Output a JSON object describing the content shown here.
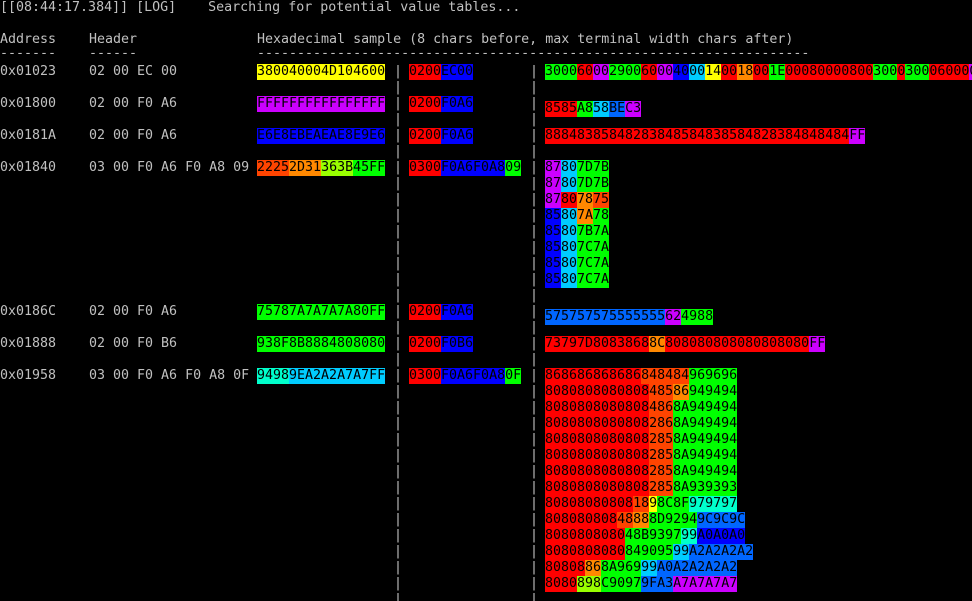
{
  "log_line": "[[08:44:17.384]] [LOG]    Searching for potential value tables...",
  "headers": {
    "address": "Address",
    "header": "Header",
    "sample": "Hexadecimal sample (8 chars before, max terminal width chars after)"
  },
  "underlines": {
    "address": "-------",
    "header": "------",
    "sample": "---------------------------------------------------------------------"
  },
  "separator": "|",
  "colors": {
    "r": "#ff0000",
    "g": "#00ff00",
    "b": "#0000ff",
    "y": "#ffff00",
    "m": "#cc00ff",
    "o": "#ff8800",
    "c": "#00ffcc",
    "t": "#00ccff",
    "l": "#99ff00",
    "x": "#ff4400",
    "s": "#0066ff",
    "p": "#ff00cc"
  },
  "entries": [
    {
      "address": "0x01023",
      "header": "02 00 EC 00",
      "before": [
        [
          "380040004D104600",
          "y"
        ]
      ],
      "mid": [
        [
          "0200",
          "r"
        ],
        [
          "EC00",
          "b"
        ]
      ],
      "after": [
        [
          [
            [
              "3000",
              "g"
            ],
            [
              "60",
              "r"
            ],
            [
              "00",
              "m"
            ],
            [
              "2900",
              "g"
            ],
            [
              "60",
              "r"
            ],
            [
              "00",
              "m"
            ],
            [
              "40",
              "b"
            ],
            [
              "00",
              "t"
            ],
            [
              "14",
              "y"
            ],
            [
              "00",
              "r"
            ],
            [
              "18",
              "o"
            ],
            [
              "00",
              "r"
            ],
            [
              "1E",
              "g"
            ],
            [
              "00080000800",
              "r"
            ],
            [
              "300",
              "g"
            ],
            [
              "0",
              "r"
            ],
            [
              "300",
              "g"
            ],
            [
              "06000",
              "r"
            ],
            [
              "0",
              "m"
            ]
          ]
        ]
      ]
    },
    {
      "address": "0x01800",
      "header": "02 00 F0 A6",
      "before": [
        [
          "FFFFFFFFFFFFFFFF",
          "m"
        ]
      ],
      "mid": [
        [
          "0200",
          "r"
        ],
        [
          "F0A6",
          "b"
        ]
      ],
      "after": [
        [
          [
            [
              "8585",
              "r"
            ],
            [
              "A8",
              "g"
            ],
            [
              "",
              "b"
            ],
            [
              "58",
              "t"
            ],
            [
              "BE",
              "s"
            ],
            [
              "C3",
              "m"
            ]
          ]
        ]
      ]
    },
    {
      "address": "0x0181A",
      "header": "02 00 F0 A6",
      "before": [
        [
          "E6E8EBEAEAE8E9E6",
          "b"
        ]
      ],
      "mid": [
        [
          "0200",
          "r"
        ],
        [
          "F0A6",
          "b"
        ]
      ],
      "after": [
        [
          [
            [
              "88848385848283848584838584828384848484",
              "r"
            ],
            [
              "FF",
              "m"
            ]
          ]
        ]
      ]
    },
    {
      "address": "0x01840",
      "header": "03 00 F0 A6 F0 A8 09",
      "before": [
        [
          "2225",
          "x"
        ],
        [
          "2D31",
          "o"
        ],
        [
          "363B",
          "l"
        ],
        [
          "45FF",
          "g"
        ]
      ],
      "mid": [
        [
          "0300",
          "r"
        ],
        [
          "F0A6F0A8",
          "b"
        ],
        [
          "09",
          "g"
        ]
      ],
      "after": [
        [
          [
            [
              "87",
              "m"
            ],
            [
              "80",
              "t"
            ],
            [
              "7D7B",
              "g"
            ]
          ]
        ],
        [
          [
            [
              "87",
              "m"
            ],
            [
              "80",
              "t"
            ],
            [
              "7D7B",
              "g"
            ]
          ]
        ],
        [
          [
            [
              "87",
              "m"
            ],
            [
              "80",
              "r"
            ],
            [
              "78",
              "o"
            ],
            [
              "75",
              "x"
            ]
          ]
        ],
        [
          [
            [
              "85",
              "b"
            ],
            [
              "80",
              "t"
            ],
            [
              "7A",
              "o"
            ],
            [
              "78",
              "g"
            ]
          ]
        ],
        [
          [
            [
              "85",
              "b"
            ],
            [
              "80",
              "t"
            ],
            [
              "7B7A",
              "g"
            ]
          ]
        ],
        [
          [
            [
              "85",
              "b"
            ],
            [
              "80",
              "t"
            ],
            [
              "7C7A",
              "g"
            ]
          ]
        ],
        [
          [
            [
              "85",
              "b"
            ],
            [
              "80",
              "t"
            ],
            [
              "7C7A",
              "g"
            ]
          ]
        ],
        [
          [
            [
              "85",
              "b"
            ],
            [
              "80",
              "t"
            ],
            [
              "7C7A",
              "g"
            ]
          ]
        ]
      ]
    },
    {
      "address": "0x0186C",
      "header": "02 00 F0 A6",
      "before": [
        [
          "75787A7A7A7A80FF",
          "g"
        ]
      ],
      "mid": [
        [
          "0200",
          "r"
        ],
        [
          "F0A6",
          "b"
        ]
      ],
      "after": [
        [
          [
            [
              "575757575555555",
              "s"
            ],
            [
              "62",
              "m"
            ],
            [
              "",
              "b"
            ],
            [
              "4988",
              "g"
            ],
            [
              "",
              "r"
            ]
          ]
        ]
      ]
    },
    {
      "address": "0x01888",
      "header": "02 00 F0 B6",
      "before": [
        [
          "938F8B8884808080",
          "g"
        ]
      ],
      "mid": [
        [
          "0200",
          "r"
        ],
        [
          "F0B6",
          "b"
        ]
      ],
      "after": [
        [
          [
            [
              "73797D8083868",
              "r"
            ],
            [
              "8C",
              "o"
            ],
            [
              "808080808080808080",
              "r"
            ],
            [
              "FF",
              "m"
            ]
          ]
        ]
      ]
    },
    {
      "address": "0x01958",
      "header": "03 00 F0 A6 F0 A8 0F",
      "before": [
        [
          "9498",
          "c"
        ],
        [
          "9EA2A2A7A7FF",
          "t"
        ]
      ],
      "mid": [
        [
          "0300",
          "r"
        ],
        [
          "F0A6F0A8",
          "b"
        ],
        [
          "0F",
          "g"
        ]
      ],
      "after": [
        [
          [
            [
              "868686868686",
              "r"
            ],
            [
              "848484",
              "x"
            ],
            [
              "969696",
              "g"
            ]
          ]
        ],
        [
          [
            [
              "8080808080808",
              "r"
            ],
            [
              "485",
              "x"
            ],
            [
              "86",
              "o"
            ],
            [
              "949494",
              "g"
            ]
          ]
        ],
        [
          [
            [
              "8080808080808",
              "r"
            ],
            [
              "486",
              "x"
            ],
            [
              "8A949494",
              "g"
            ]
          ]
        ],
        [
          [
            [
              "8080808080808",
              "r"
            ],
            [
              "286",
              "x"
            ],
            [
              "8A949494",
              "g"
            ]
          ]
        ],
        [
          [
            [
              "8080808080808",
              "r"
            ],
            [
              "285",
              "x"
            ],
            [
              "8A949494",
              "g"
            ]
          ]
        ],
        [
          [
            [
              "8080808080808",
              "r"
            ],
            [
              "285",
              "x"
            ],
            [
              "8A949494",
              "g"
            ]
          ]
        ],
        [
          [
            [
              "8080808080808",
              "r"
            ],
            [
              "285",
              "x"
            ],
            [
              "8A949494",
              "g"
            ]
          ]
        ],
        [
          [
            [
              "8080808080808",
              "r"
            ],
            [
              "285",
              "x"
            ],
            [
              "8A939393",
              "g"
            ]
          ]
        ],
        [
          [
            [
              "80808080808",
              "r"
            ],
            [
              "18",
              "x"
            ],
            [
              "9",
              "y"
            ],
            [
              "8C8F",
              "g"
            ],
            [
              "979797",
              "c"
            ]
          ]
        ],
        [
          [
            [
              "808080808",
              "r"
            ],
            [
              "48",
              "x"
            ],
            [
              "88",
              "o"
            ],
            [
              "8D9294",
              "g"
            ],
            [
              "9C9C9C",
              "s"
            ]
          ]
        ],
        [
          [
            [
              "8080808080",
              "r"
            ],
            [
              "48B",
              "g"
            ],
            [
              "9397",
              "g"
            ],
            [
              "99",
              "c"
            ],
            [
              "A0A0A0",
              "b"
            ]
          ]
        ],
        [
          [
            [
              "8080808080",
              "r"
            ],
            [
              "849095",
              "g"
            ],
            [
              "99",
              "t"
            ],
            [
              "A2A2A2A2",
              "s"
            ]
          ]
        ],
        [
          [
            [
              "80808",
              "r"
            ],
            [
              "86",
              "o"
            ],
            [
              "8A969",
              "g"
            ],
            [
              "99",
              "t"
            ],
            [
              "A0A2A2A2A2",
              "s"
            ]
          ]
        ],
        [
          [
            [
              "808",
              "r"
            ],
            [
              "0",
              "r"
            ],
            [
              "898",
              "l"
            ],
            [
              "C",
              "g"
            ],
            [
              "9097",
              "g"
            ],
            [
              "9FA3",
              "s"
            ],
            [
              "A7A7A7A7",
              "m"
            ]
          ]
        ]
      ]
    }
  ]
}
